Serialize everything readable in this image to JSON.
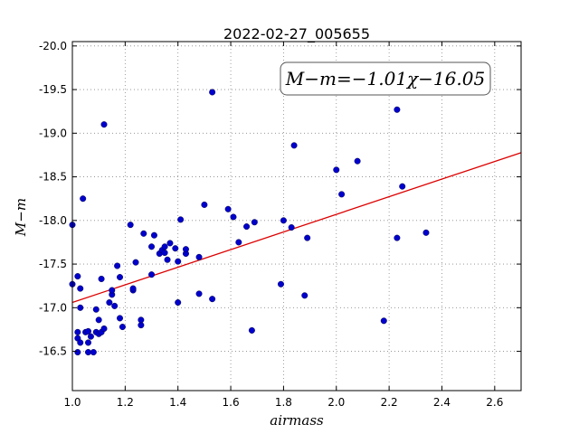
{
  "chart_data": {
    "type": "scatter",
    "title": "2022-02-27_005655",
    "xlabel": "airmass",
    "ylabel": "M−m",
    "xlim": [
      1.0,
      2.7
    ],
    "ylim": [
      -20.05,
      -16.05
    ],
    "y_inverted": true,
    "grid": true,
    "xticks": [
      "1.0",
      "1.2",
      "1.4",
      "1.6",
      "1.8",
      "2.0",
      "2.2",
      "2.4",
      "2.6"
    ],
    "yticks": [
      "-16.5",
      "-17.0",
      "-17.5",
      "-18.0",
      "-18.5",
      "-19.0",
      "-19.5",
      "-20.0"
    ],
    "fit_line": {
      "slope": -1.01,
      "intercept": -16.05
    },
    "annotation": "M−m=−1.01χ−16.05",
    "colors": {
      "points": "#0000cc",
      "fit": "#dd0000",
      "grid": "#888888"
    },
    "points": [
      [
        1.0,
        -17.27
      ],
      [
        1.0,
        -17.95
      ],
      [
        1.02,
        -16.72
      ],
      [
        1.02,
        -16.65
      ],
      [
        1.02,
        -16.49
      ],
      [
        1.03,
        -16.6
      ],
      [
        1.02,
        -17.36
      ],
      [
        1.03,
        -17.0
      ],
      [
        1.03,
        -17.22
      ],
      [
        1.04,
        -18.25
      ],
      [
        1.05,
        -16.72
      ],
      [
        1.06,
        -16.49
      ],
      [
        1.06,
        -16.6
      ],
      [
        1.06,
        -16.73
      ],
      [
        1.07,
        -16.67
      ],
      [
        1.08,
        -16.49
      ],
      [
        1.09,
        -16.72
      ],
      [
        1.09,
        -16.98
      ],
      [
        1.1,
        -16.7
      ],
      [
        1.1,
        -16.86
      ],
      [
        1.11,
        -16.72
      ],
      [
        1.11,
        -17.33
      ],
      [
        1.12,
        -16.76
      ],
      [
        1.12,
        -19.1
      ],
      [
        1.14,
        -17.06
      ],
      [
        1.15,
        -17.15
      ],
      [
        1.15,
        -17.2
      ],
      [
        1.16,
        -17.02
      ],
      [
        1.17,
        -17.48
      ],
      [
        1.18,
        -17.35
      ],
      [
        1.18,
        -16.88
      ],
      [
        1.19,
        -16.78
      ],
      [
        1.22,
        -17.95
      ],
      [
        1.23,
        -17.2
      ],
      [
        1.23,
        -17.22
      ],
      [
        1.24,
        -17.52
      ],
      [
        1.26,
        -16.8
      ],
      [
        1.26,
        -16.86
      ],
      [
        1.27,
        -17.85
      ],
      [
        1.3,
        -17.38
      ],
      [
        1.3,
        -17.7
      ],
      [
        1.31,
        -17.83
      ],
      [
        1.33,
        -17.62
      ],
      [
        1.34,
        -17.66
      ],
      [
        1.35,
        -17.63
      ],
      [
        1.35,
        -17.7
      ],
      [
        1.36,
        -17.55
      ],
      [
        1.37,
        -17.74
      ],
      [
        1.39,
        -17.68
      ],
      [
        1.4,
        -17.06
      ],
      [
        1.4,
        -17.53
      ],
      [
        1.41,
        -18.01
      ],
      [
        1.43,
        -17.62
      ],
      [
        1.43,
        -17.67
      ],
      [
        1.48,
        -17.58
      ],
      [
        1.48,
        -17.16
      ],
      [
        1.5,
        -18.18
      ],
      [
        1.53,
        -17.1
      ],
      [
        1.53,
        -19.47
      ],
      [
        1.59,
        -18.13
      ],
      [
        1.61,
        -18.04
      ],
      [
        1.63,
        -17.75
      ],
      [
        1.66,
        -17.93
      ],
      [
        1.68,
        -16.74
      ],
      [
        1.69,
        -17.98
      ],
      [
        1.79,
        -17.27
      ],
      [
        1.8,
        -18.0
      ],
      [
        1.83,
        -17.92
      ],
      [
        1.84,
        -18.86
      ],
      [
        1.88,
        -17.14
      ],
      [
        1.89,
        -17.8
      ],
      [
        2.0,
        -18.58
      ],
      [
        2.02,
        -18.3
      ],
      [
        2.08,
        -18.68
      ],
      [
        2.18,
        -16.85
      ],
      [
        2.23,
        -19.27
      ],
      [
        2.23,
        -17.8
      ],
      [
        2.25,
        -18.39
      ],
      [
        2.34,
        -17.86
      ]
    ]
  }
}
